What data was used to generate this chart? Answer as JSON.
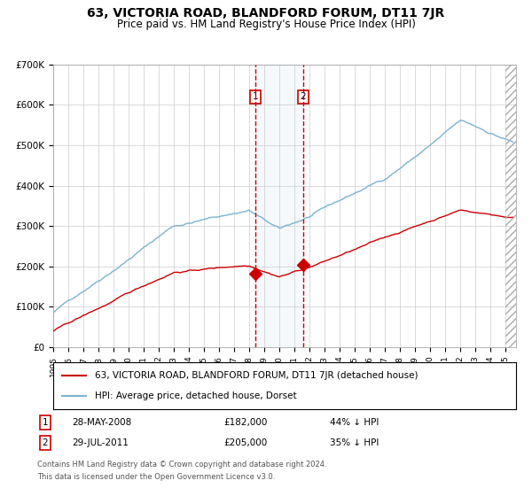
{
  "title": "63, VICTORIA ROAD, BLANDFORD FORUM, DT11 7JR",
  "subtitle": "Price paid vs. HM Land Registry's House Price Index (HPI)",
  "title_fontsize": 10,
  "subtitle_fontsize": 8.5,
  "ytick_labels": [
    "£0",
    "£100K",
    "£200K",
    "£300K",
    "£400K",
    "£500K",
    "£600K",
    "£700K"
  ],
  "yticks": [
    0,
    100000,
    200000,
    300000,
    400000,
    500000,
    600000,
    700000
  ],
  "hpi_color": "#7ab3d4",
  "price_color": "#cc0000",
  "grid_color": "#cccccc",
  "bg_color": "#ffffff",
  "sale1_date": 2008.41,
  "sale1_price": 182000,
  "sale1_label": "1",
  "sale1_display": "28-MAY-2008",
  "sale1_amount": "£182,000",
  "sale1_pct": "44% ↓ HPI",
  "sale2_date": 2011.57,
  "sale2_price": 205000,
  "sale2_label": "2",
  "sale2_display": "29-JUL-2011",
  "sale2_amount": "£205,000",
  "sale2_pct": "35% ↓ HPI",
  "shade_start": 2008.41,
  "shade_end": 2011.57,
  "footnote1": "Contains HM Land Registry data © Crown copyright and database right 2024.",
  "footnote2": "This data is licensed under the Open Government Licence v3.0.",
  "legend_line1": "63, VICTORIA ROAD, BLANDFORD FORUM, DT11 7JR (detached house)",
  "legend_line2": "HPI: Average price, detached house, Dorset",
  "xmin": 1995.0,
  "xmax": 2025.7,
  "ylim": [
    0,
    700000
  ],
  "hatch_start": 2025.0
}
